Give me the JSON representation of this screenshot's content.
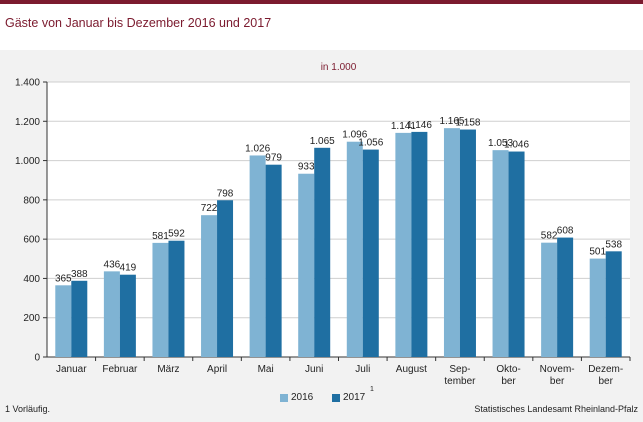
{
  "page": {
    "title": "Gäste von Januar bis Dezember 2016 und 2017",
    "note": "1 Vorläufig.",
    "source": "Statistisches Landesamt Rheinland-Pfalz"
  },
  "colors": {
    "brand": "#7b1a2e",
    "series_2016": "#7fb3d3",
    "series_2017": "#1f6fa2"
  },
  "chart_data": {
    "type": "bar",
    "subtitle": "in 1.000",
    "categories": [
      [
        "Januar"
      ],
      [
        "Februar"
      ],
      [
        "März"
      ],
      [
        "April"
      ],
      [
        "Mai"
      ],
      [
        "Juni"
      ],
      [
        "Juli"
      ],
      [
        "August"
      ],
      [
        "Sep-",
        "tember"
      ],
      [
        "Okto-",
        "ber"
      ],
      [
        "Novem-",
        "ber"
      ],
      [
        "Dezem-",
        "ber"
      ]
    ],
    "series": [
      {
        "name": "2016",
        "values": [
          365,
          436,
          581,
          722,
          1026,
          933,
          1096,
          1141,
          1165,
          1053,
          582,
          501
        ],
        "labels": [
          "365",
          "436",
          "581",
          "722",
          "1.026",
          "933",
          "1.096",
          "1.141",
          "1.165",
          "1.053",
          "582",
          "501"
        ]
      },
      {
        "name": "2017",
        "footnote": "1",
        "values": [
          388,
          419,
          592,
          798,
          979,
          1065,
          1056,
          1146,
          1158,
          1046,
          608,
          538
        ],
        "labels": [
          "388",
          "419",
          "592",
          "798",
          "979",
          "1.065",
          "1.056",
          "1.146",
          "1.158",
          "1.046",
          "608",
          "538"
        ]
      }
    ],
    "ylim": [
      0,
      1400
    ],
    "yticks": [
      0,
      200,
      400,
      600,
      800,
      1000,
      1200,
      1400
    ],
    "ytick_labels": [
      "0",
      "200",
      "400",
      "600",
      "800",
      "1.000",
      "1.200",
      "1.400"
    ],
    "grid": "horizontal",
    "legend": "bottom"
  }
}
